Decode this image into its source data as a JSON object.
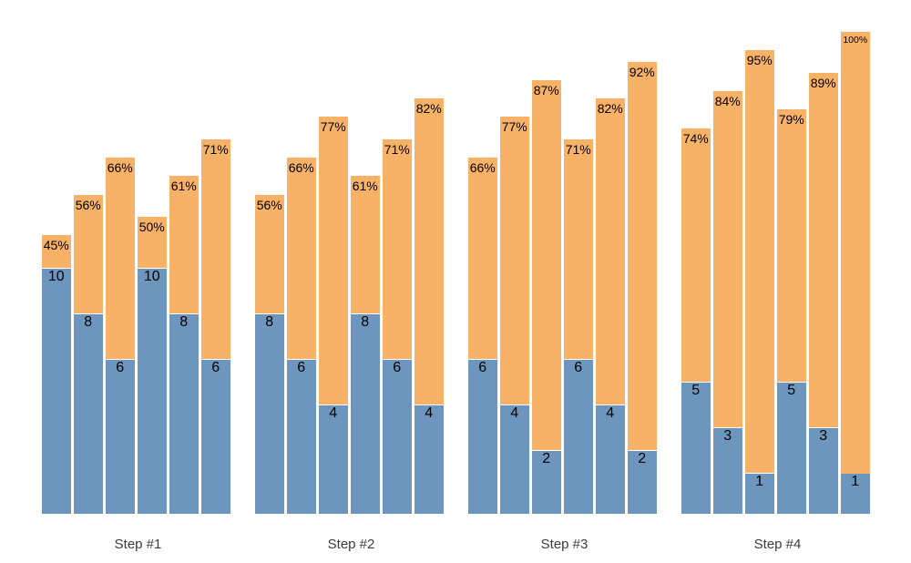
{
  "chart_data": {
    "type": "bar",
    "subtype": "grouped-stacked-funnel",
    "title": "",
    "xlabel": "",
    "ylabel": "",
    "grid": false,
    "axes_visible": false,
    "legend": null,
    "categories": [
      "Step #1",
      "Step #2",
      "Step #3",
      "Step #4"
    ],
    "series_description": {
      "bottom_segment": "remaining count (blue, value labeled at top of blue segment)",
      "top_segment": "completion percentage (orange, percent labeled at top of bar)"
    },
    "groups": [
      {
        "label": "Step #1",
        "bars": [
          {
            "count": 10,
            "pct": 45,
            "pct_label": "45%"
          },
          {
            "count": 8,
            "pct": 56,
            "pct_label": "56%"
          },
          {
            "count": 6,
            "pct": 66,
            "pct_label": "66%"
          },
          {
            "count": 10,
            "pct": 50,
            "pct_label": "50%"
          },
          {
            "count": 8,
            "pct": 61,
            "pct_label": "61%"
          },
          {
            "count": 6,
            "pct": 71,
            "pct_label": "71%"
          }
        ]
      },
      {
        "label": "Step #2",
        "bars": [
          {
            "count": 8,
            "pct": 56,
            "pct_label": "56%"
          },
          {
            "count": 6,
            "pct": 66,
            "pct_label": "66%"
          },
          {
            "count": 4,
            "pct": 77,
            "pct_label": "77%"
          },
          {
            "count": 8,
            "pct": 61,
            "pct_label": "61%"
          },
          {
            "count": 6,
            "pct": 71,
            "pct_label": "71%"
          },
          {
            "count": 4,
            "pct": 82,
            "pct_label": "82%"
          }
        ]
      },
      {
        "label": "Step #3",
        "bars": [
          {
            "count": 6,
            "pct": 66,
            "pct_label": "66%"
          },
          {
            "count": 4,
            "pct": 77,
            "pct_label": "77%"
          },
          {
            "count": 2,
            "pct": 87,
            "pct_label": "87%"
          },
          {
            "count": 6,
            "pct": 71,
            "pct_label": "71%"
          },
          {
            "count": 4,
            "pct": 82,
            "pct_label": "82%"
          },
          {
            "count": 2,
            "pct": 92,
            "pct_label": "92%"
          }
        ]
      },
      {
        "label": "Step #4",
        "bars": [
          {
            "count": 5,
            "pct": 74,
            "pct_label": "74%"
          },
          {
            "count": 3,
            "pct": 84,
            "pct_label": "84%"
          },
          {
            "count": 1,
            "pct": 95,
            "pct_label": "95%"
          },
          {
            "count": 5,
            "pct": 79,
            "pct_label": "79%"
          },
          {
            "count": 3,
            "pct": 89,
            "pct_label": "89%"
          },
          {
            "count": 1,
            "pct": 100,
            "pct_label": "100%"
          }
        ]
      }
    ],
    "colors": {
      "bottom_segment": "#6c96be",
      "top_segment": "#f8b267",
      "pct_label_text": "#000000",
      "count_label_text": "#000000",
      "group_label_text": "#3b3b3b",
      "background": "#ffffff"
    }
  }
}
